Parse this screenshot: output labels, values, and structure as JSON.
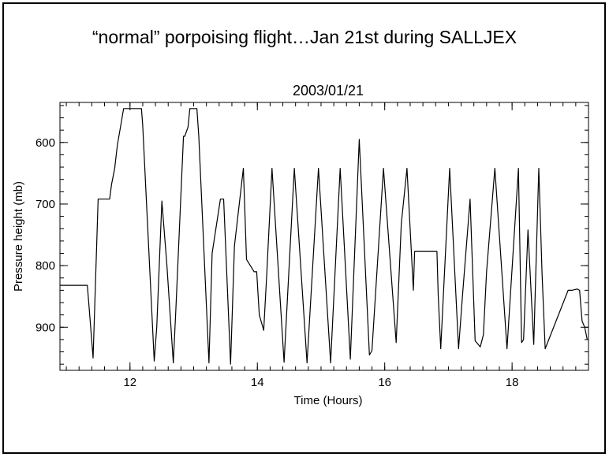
{
  "slide": {
    "title": "“normal” porpoising flight…Jan 21st during SALLJEX"
  },
  "chart_data": {
    "type": "line",
    "title": "2003/01/21",
    "xlabel": "Time (Hours)",
    "ylabel": "Pressure height (mb)",
    "xlim": [
      10.9,
      19.2
    ],
    "ylim": [
      970,
      535
    ],
    "y_reversed": true,
    "grid": false,
    "legend": "none",
    "line_color": "#000000",
    "x_ticks": [
      12,
      14,
      16,
      18
    ],
    "x_tick_labels": [
      "12",
      "14",
      "16",
      "18"
    ],
    "y_ticks": [
      600,
      700,
      800,
      900
    ],
    "y_tick_labels": [
      "600",
      "700",
      "800",
      "900"
    ],
    "series": [
      {
        "x": [
          10.9,
          11.33,
          11.36,
          11.42,
          11.5,
          11.68,
          11.71,
          11.76,
          11.8,
          11.85,
          11.9,
          12.18,
          12.2,
          12.38,
          12.42,
          12.5,
          12.58,
          12.68,
          12.72,
          12.84,
          12.86,
          12.91,
          12.94,
          13.05,
          13.08,
          13.24,
          13.29,
          13.42,
          13.47,
          13.58,
          13.64,
          13.78,
          13.83,
          13.95,
          13.99,
          14.03,
          14.1,
          14.15,
          14.23,
          14.42,
          14.58,
          14.78,
          14.96,
          15.15,
          15.3,
          15.46,
          15.6,
          15.76,
          15.8,
          15.98,
          16.18,
          16.26,
          16.35,
          16.45,
          16.47,
          16.82,
          16.84,
          16.88,
          17.02,
          17.16,
          17.22,
          17.34,
          17.42,
          17.5,
          17.55,
          17.6,
          17.73,
          17.92,
          18.1,
          18.15,
          18.18,
          18.25,
          18.34,
          18.42,
          18.47,
          18.52,
          18.88,
          18.9,
          18.94,
          19.02,
          19.06,
          19.1,
          19.14,
          19.18
        ],
        "y": [
          832,
          832,
          870,
          950,
          692,
          692,
          668,
          642,
          605,
          575,
          545,
          545,
          572,
          955,
          900,
          695,
          800,
          958,
          872,
          590,
          590,
          575,
          545,
          545,
          590,
          958,
          780,
          692,
          692,
          960,
          768,
          642,
          790,
          810,
          810,
          880,
          905,
          810,
          642,
          957,
          642,
          958,
          642,
          958,
          642,
          952,
          595,
          945,
          938,
          642,
          925,
          732,
          642,
          840,
          777,
          777,
          848,
          935,
          642,
          935,
          850,
          692,
          922,
          932,
          912,
          810,
          642,
          935,
          642,
          925,
          920,
          742,
          928,
          642,
          812,
          935,
          840,
          840,
          840,
          838,
          840,
          890,
          900,
          920
        ]
      }
    ]
  }
}
